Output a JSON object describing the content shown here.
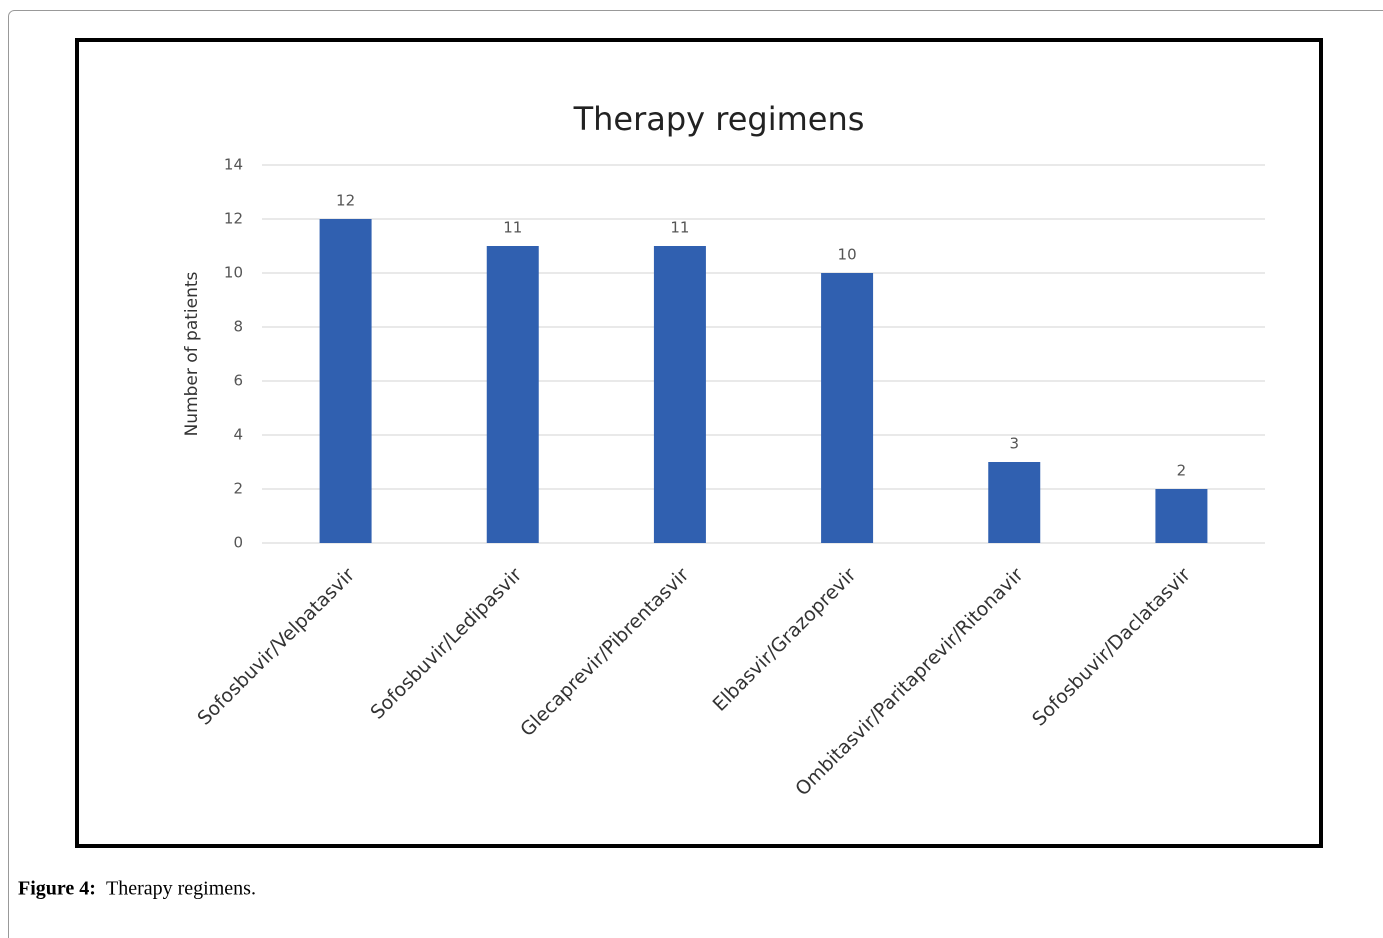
{
  "chart_data": {
    "type": "bar",
    "title": "Therapy regimens",
    "y_label": "Number of patients",
    "categories": [
      "Sofosbuvir/Velpatasvir",
      "Sofosbuvir/Ledipasvir",
      "Glecaprevir/Pibrentasvir",
      "Elbasvir/Grazoprevir",
      "Ombitasvir/Paritaprevir/Ritonavir",
      "Sofosbuvir/Daclatasvir"
    ],
    "values": [
      12,
      11,
      11,
      10,
      3,
      2
    ],
    "color": "#3060b0",
    "ylim": [
      0,
      14
    ],
    "yticks": [
      0,
      2,
      4,
      6,
      8,
      10,
      12,
      14
    ],
    "grid": true
  },
  "caption": {
    "label": "Figure 4:",
    "text": "Therapy regimens."
  }
}
